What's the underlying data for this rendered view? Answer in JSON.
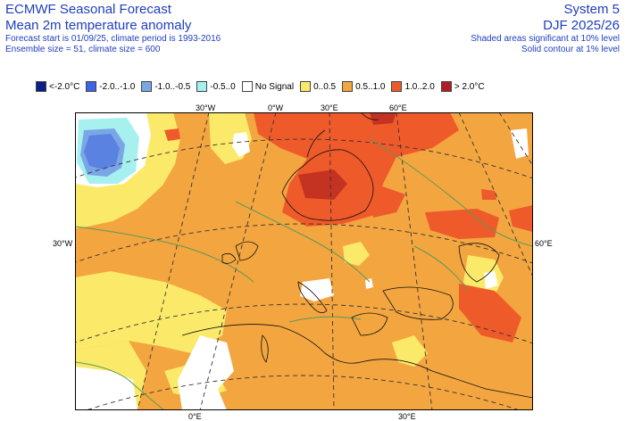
{
  "header": {
    "title": "ECMWF Seasonal Forecast",
    "subtitle": "Mean 2m temperature anomaly",
    "forecast_info": "Forecast start is 01/09/25, climate period is 1993-2016",
    "ensemble_info": "Ensemble size = 51, climate size = 600",
    "system": "System 5",
    "season": "DJF 2025/26",
    "significance_shaded": "Shaded areas significant at 10% level",
    "significance_contour": "Solid contour at 1% level"
  },
  "legend": [
    {
      "label": "<-2.0°C",
      "color": "#0a1e8c"
    },
    {
      "label": "-2.0..-1.0",
      "color": "#3c64e6"
    },
    {
      "label": "-1.0..-0.5",
      "color": "#7aa6e6"
    },
    {
      "label": "-0.5..0",
      "color": "#a6f0f0"
    },
    {
      "label": "No Signal",
      "color": "#ffffff"
    },
    {
      "label": "0..0.5",
      "color": "#fbe96a"
    },
    {
      "label": "0.5..1.0",
      "color": "#f3a540"
    },
    {
      "label": "1.0..2.0",
      "color": "#ee5a2a"
    },
    {
      "label": "> 2.0°C",
      "color": "#b21e28"
    }
  ],
  "axis_labels": {
    "top": [
      "30°W",
      "0°W",
      "30°E",
      "60°E"
    ],
    "left": "30°W",
    "right": "60°E",
    "bottom": [
      "0°E",
      "30°E"
    ]
  },
  "colors": {
    "header_text": "#1f3fbf",
    "ocean_base": "#f3a540",
    "contour": "#5a9a5a"
  }
}
